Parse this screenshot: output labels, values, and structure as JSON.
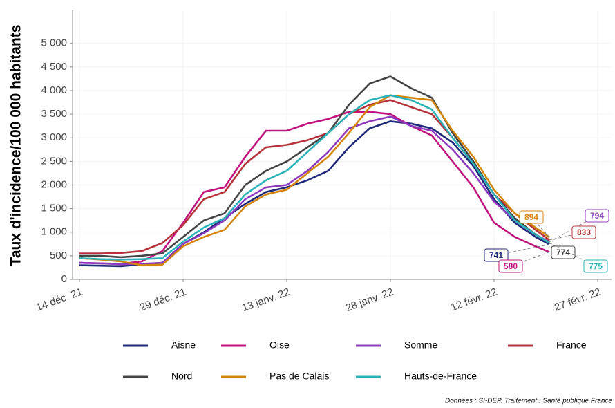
{
  "chart_data": {
    "type": "line",
    "y_label": "Taux d'incidence/100 000 habitants",
    "caption": "Données : SI-DEP. Traitement : Santé publique France",
    "x": [
      "2021-12-14",
      "2021-12-17",
      "2021-12-20",
      "2021-12-23",
      "2021-12-26",
      "2021-12-29",
      "2022-01-01",
      "2022-01-04",
      "2022-01-07",
      "2022-01-10",
      "2022-01-13",
      "2022-01-16",
      "2022-01-19",
      "2022-01-22",
      "2022-01-25",
      "2022-01-28",
      "2022-01-31",
      "2022-02-03",
      "2022-02-06",
      "2022-02-09",
      "2022-02-12",
      "2022-02-15",
      "2022-02-18",
      "2022-02-20"
    ],
    "xlim": [
      "2021-12-13",
      "2022-03-01"
    ],
    "xticks": [
      {
        "value": "2021-12-14",
        "label": "14 déc. 21"
      },
      {
        "value": "2021-12-29",
        "label": "29 déc. 21"
      },
      {
        "value": "2022-01-13",
        "label": "13 janv. 22"
      },
      {
        "value": "2022-01-28",
        "label": "28 janv. 22"
      },
      {
        "value": "2022-02-12",
        "label": "12 févr. 22"
      },
      {
        "value": "2022-02-27",
        "label": "27 févr. 22"
      }
    ],
    "ylim": [
      0,
      5700
    ],
    "yticks": [
      0,
      500,
      {
        "value": 1000,
        "label": "1 000"
      },
      {
        "value": 1500,
        "label": "1 500"
      },
      {
        "value": 2000,
        "label": "2 000"
      },
      {
        "value": 2500,
        "label": "2 500"
      },
      {
        "value": 3000,
        "label": "3 000"
      },
      {
        "value": 3500,
        "label": "3 500"
      },
      {
        "value": 4000,
        "label": "4 000"
      },
      {
        "value": 4500,
        "label": "4 500"
      },
      {
        "value": 5000,
        "label": "5 000"
      }
    ],
    "grid": true,
    "legend": "bottom",
    "series": [
      {
        "name": "Aisne",
        "color": "#1f2a7a",
        "values": [
          300,
          290,
          280,
          320,
          350,
          750,
          1000,
          1300,
          1600,
          1850,
          1950,
          2100,
          2300,
          2800,
          3200,
          3350,
          3300,
          3200,
          2900,
          2400,
          1700,
          1200,
          900,
          741
        ]
      },
      {
        "name": "Oise",
        "color": "#c0137d",
        "values": [
          350,
          340,
          330,
          380,
          600,
          1200,
          1850,
          1950,
          2600,
          3150,
          3150,
          3300,
          3400,
          3550,
          3550,
          3500,
          3250,
          3050,
          2500,
          1950,
          1200,
          900,
          700,
          580
        ]
      },
      {
        "name": "Somme",
        "color": "#8e3bbf",
        "values": [
          350,
          340,
          320,
          330,
          350,
          750,
          980,
          1250,
          1700,
          1950,
          2000,
          2300,
          2700,
          3200,
          3350,
          3450,
          3250,
          3150,
          2750,
          2250,
          1650,
          1250,
          950,
          794
        ]
      },
      {
        "name": "France",
        "color": "#b5343b",
        "values": [
          550,
          550,
          560,
          600,
          770,
          1150,
          1700,
          1850,
          2450,
          2800,
          2850,
          2950,
          3100,
          3500,
          3700,
          3800,
          3650,
          3500,
          3000,
          2450,
          1800,
          1400,
          1050,
          833
        ]
      },
      {
        "name": "Nord",
        "color": "#444444",
        "values": [
          500,
          500,
          470,
          500,
          550,
          900,
          1250,
          1400,
          2000,
          2300,
          2500,
          2800,
          3100,
          3700,
          4150,
          4300,
          4050,
          3850,
          3100,
          2500,
          1800,
          1300,
          950,
          774
        ]
      },
      {
        "name": "Pas de Calais",
        "color": "#d4860b",
        "values": [
          450,
          420,
          380,
          300,
          310,
          700,
          900,
          1050,
          1550,
          1800,
          1900,
          2250,
          2600,
          3100,
          3650,
          3900,
          3850,
          3800,
          3150,
          2600,
          1900,
          1400,
          1100,
          894
        ]
      },
      {
        "name": "Hauts-de-France",
        "color": "#2ab3b8",
        "values": [
          450,
          430,
          420,
          430,
          450,
          800,
          1100,
          1300,
          1800,
          2100,
          2300,
          2700,
          3100,
          3500,
          3800,
          3900,
          3800,
          3600,
          3000,
          2450,
          1800,
          1250,
          950,
          775
        ]
      }
    ]
  }
}
